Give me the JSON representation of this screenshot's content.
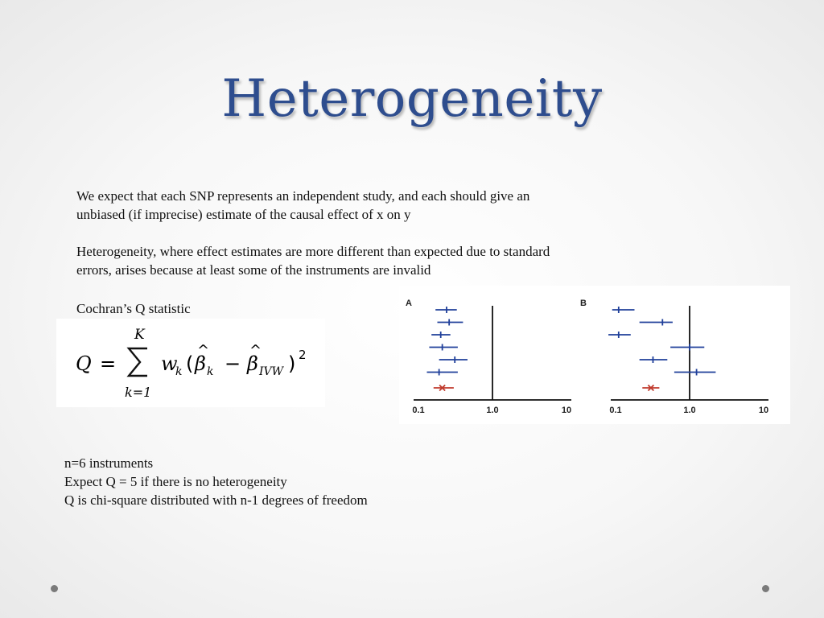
{
  "slide": {
    "title": "Heterogeneity",
    "paragraphs": [
      {
        "lines": [
          "We expect that each SNP represents an independent study, and each should give an",
          "unbiased (if imprecise) estimate of the causal effect of x on y"
        ]
      },
      {
        "lines": [
          "Heterogeneity, where effect estimates are more different than expected due to standard",
          "errors, arises because at least some of the instruments are invalid"
        ]
      }
    ],
    "formula_label": "Cochran’s Q statistic",
    "formula": {
      "lhs": "Q",
      "equals": "=",
      "sum_upper": "K",
      "sum_lower": "k=1",
      "weight": "w",
      "weight_sub": "k",
      "beta_k_sub": "k",
      "minus": "−",
      "beta_ivw_sub": "IVW",
      "exponent": "2"
    },
    "bottom_lines": [
      "n=6 instruments",
      "Expect Q = 5 if there is no heterogeneity",
      "Q is chi-square distributed with n-1 degrees of freedom"
    ],
    "colors": {
      "title": "#2e4d8e",
      "estimate_line": "#1f3f9a",
      "outlier_marker": "#c0392b",
      "axis": "#111111"
    }
  },
  "chart_data": [
    {
      "type": "forest",
      "panel_label": "A",
      "x_scale": "log",
      "xlim": [
        0.1,
        10
      ],
      "x_ticks": [
        "0.1",
        "1.0",
        "10"
      ],
      "reference_line": 1.0,
      "estimates": [
        {
          "est": 0.24,
          "lo": 0.17,
          "hi": 0.33,
          "invalid": false
        },
        {
          "est": 0.26,
          "lo": 0.18,
          "hi": 0.4,
          "invalid": false
        },
        {
          "est": 0.2,
          "lo": 0.15,
          "hi": 0.27,
          "invalid": false
        },
        {
          "est": 0.21,
          "lo": 0.14,
          "hi": 0.34,
          "invalid": false
        },
        {
          "est": 0.31,
          "lo": 0.19,
          "hi": 0.46,
          "invalid": false
        },
        {
          "est": 0.19,
          "lo": 0.13,
          "hi": 0.34,
          "invalid": false
        },
        {
          "est": 0.21,
          "lo": 0.16,
          "hi": 0.3,
          "invalid": true
        }
      ]
    },
    {
      "type": "forest",
      "panel_label": "B",
      "x_scale": "log",
      "xlim": [
        0.1,
        10
      ],
      "x_ticks": [
        "0.1",
        "1.0",
        "10"
      ],
      "reference_line": 1.0,
      "estimates": [
        {
          "est": 0.11,
          "lo": 0.09,
          "hi": 0.18,
          "invalid": false
        },
        {
          "est": 0.43,
          "lo": 0.21,
          "hi": 0.59,
          "invalid": false
        },
        {
          "est": 0.11,
          "lo": 0.08,
          "hi": 0.16,
          "invalid": false
        },
        {
          "est": 1.0,
          "lo": 0.55,
          "hi": 1.58,
          "invalid": false
        },
        {
          "est": 0.32,
          "lo": 0.21,
          "hi": 0.5,
          "invalid": false
        },
        {
          "est": 1.24,
          "lo": 0.62,
          "hi": 2.25,
          "invalid": false
        },
        {
          "est": 0.3,
          "lo": 0.23,
          "hi": 0.39,
          "invalid": true
        }
      ]
    }
  ]
}
